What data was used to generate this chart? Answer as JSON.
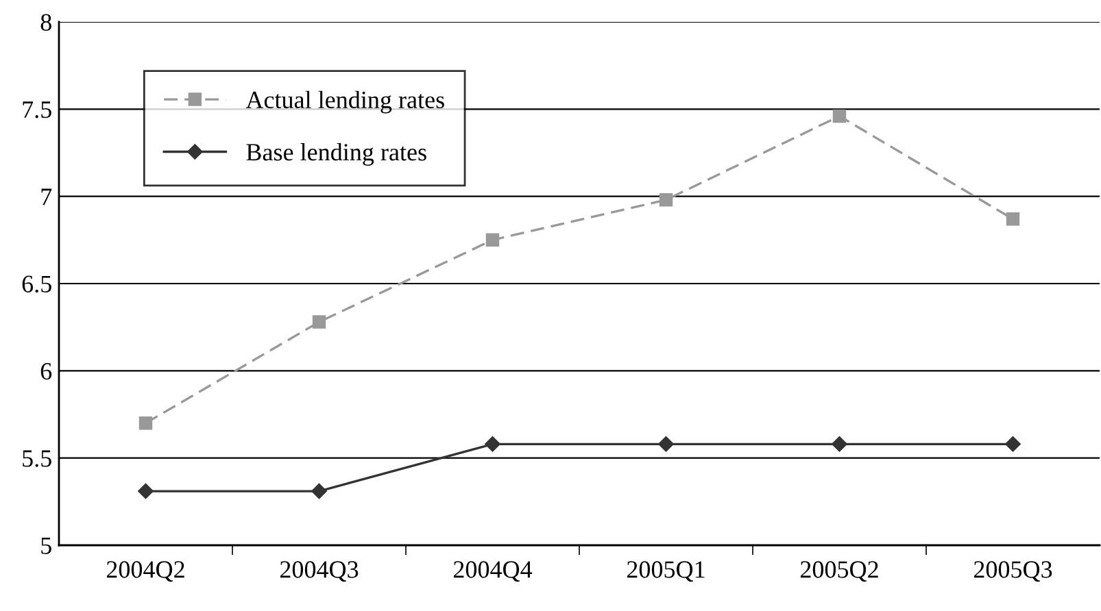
{
  "chart_data": {
    "type": "line",
    "categories": [
      "2004Q2",
      "2004Q3",
      "2004Q4",
      "2005Q1",
      "2005Q2",
      "2005Q3"
    ],
    "series": [
      {
        "name": "Actual lending rates",
        "color": "#999999",
        "marker": "square",
        "line_style": "dashed",
        "values": [
          5.7,
          6.28,
          6.75,
          6.98,
          7.46,
          6.87
        ]
      },
      {
        "name": "Base lending rates",
        "color": "#333333",
        "marker": "diamond",
        "line_style": "solid",
        "values": [
          5.31,
          5.31,
          5.58,
          5.58,
          5.58,
          5.58
        ]
      }
    ],
    "ylim": [
      5,
      8
    ],
    "yticks": [
      5,
      5.5,
      6,
      6.5,
      7,
      7.5,
      8
    ],
    "grid": "y",
    "legend": "top left"
  }
}
